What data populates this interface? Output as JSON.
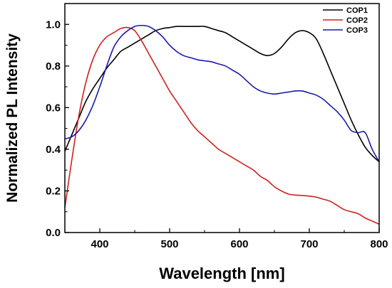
{
  "chart_data": {
    "type": "line",
    "xlabel": "Wavelength [nm]",
    "ylabel": "Normalized PL Intensity",
    "xlim": [
      350,
      800
    ],
    "ylim": [
      0.0,
      1.1
    ],
    "x_ticks": [
      400,
      500,
      600,
      700,
      800
    ],
    "x_tick_labels": [
      "400",
      "500",
      "600",
      "700",
      "800"
    ],
    "y_ticks": [
      0.0,
      0.2,
      0.4,
      0.6,
      0.8,
      1.0
    ],
    "y_tick_labels": [
      "0.0",
      "0.2",
      "0.4",
      "0.6",
      "0.8",
      "1.0"
    ],
    "grid": false,
    "legend_position": "top-right",
    "series": [
      {
        "name": "COP1",
        "color": "#000000",
        "x": [
          350,
          360,
          370,
          380,
          390,
          400,
          410,
          420,
          430,
          440,
          450,
          460,
          470,
          480,
          490,
          500,
          510,
          520,
          530,
          540,
          550,
          560,
          570,
          580,
          590,
          600,
          610,
          620,
          630,
          640,
          650,
          660,
          670,
          680,
          690,
          700,
          710,
          720,
          730,
          740,
          750,
          760,
          770,
          780,
          790,
          800
        ],
        "values": [
          0.39,
          0.47,
          0.55,
          0.63,
          0.69,
          0.74,
          0.79,
          0.83,
          0.87,
          0.89,
          0.91,
          0.93,
          0.95,
          0.97,
          0.98,
          0.985,
          0.99,
          0.99,
          0.99,
          0.99,
          0.99,
          0.98,
          0.97,
          0.96,
          0.94,
          0.92,
          0.9,
          0.88,
          0.86,
          0.85,
          0.86,
          0.89,
          0.93,
          0.96,
          0.97,
          0.96,
          0.93,
          0.86,
          0.78,
          0.7,
          0.62,
          0.54,
          0.47,
          0.41,
          0.37,
          0.34
        ]
      },
      {
        "name": "COP2",
        "color": "#d02020",
        "x": [
          350,
          360,
          370,
          380,
          390,
          400,
          410,
          420,
          430,
          440,
          450,
          460,
          470,
          480,
          490,
          500,
          510,
          520,
          530,
          540,
          550,
          560,
          570,
          580,
          590,
          600,
          610,
          620,
          630,
          640,
          650,
          660,
          670,
          680,
          690,
          700,
          710,
          720,
          730,
          740,
          750,
          760,
          770,
          780,
          790,
          800
        ],
        "values": [
          0.12,
          0.35,
          0.56,
          0.72,
          0.83,
          0.9,
          0.94,
          0.96,
          0.98,
          0.985,
          0.97,
          0.92,
          0.86,
          0.8,
          0.74,
          0.68,
          0.63,
          0.58,
          0.53,
          0.49,
          0.46,
          0.43,
          0.4,
          0.38,
          0.36,
          0.34,
          0.32,
          0.3,
          0.27,
          0.25,
          0.22,
          0.2,
          0.185,
          0.18,
          0.178,
          0.175,
          0.17,
          0.16,
          0.15,
          0.13,
          0.11,
          0.1,
          0.09,
          0.07,
          0.055,
          0.04
        ]
      },
      {
        "name": "COP3",
        "color": "#1a1aa8",
        "x": [
          350,
          360,
          370,
          380,
          390,
          400,
          410,
          420,
          430,
          440,
          450,
          460,
          470,
          480,
          490,
          500,
          510,
          520,
          530,
          540,
          550,
          560,
          570,
          580,
          590,
          600,
          610,
          620,
          630,
          640,
          650,
          660,
          670,
          680,
          690,
          700,
          710,
          720,
          730,
          740,
          750,
          760,
          770,
          780,
          790,
          800
        ],
        "values": [
          0.45,
          0.46,
          0.49,
          0.54,
          0.61,
          0.7,
          0.8,
          0.89,
          0.94,
          0.97,
          0.99,
          0.995,
          0.99,
          0.97,
          0.94,
          0.9,
          0.87,
          0.85,
          0.84,
          0.83,
          0.825,
          0.82,
          0.81,
          0.8,
          0.78,
          0.76,
          0.73,
          0.7,
          0.68,
          0.67,
          0.665,
          0.67,
          0.675,
          0.68,
          0.68,
          0.67,
          0.66,
          0.64,
          0.61,
          0.58,
          0.54,
          0.49,
          0.48,
          0.48,
          0.4,
          0.34
        ]
      }
    ]
  }
}
